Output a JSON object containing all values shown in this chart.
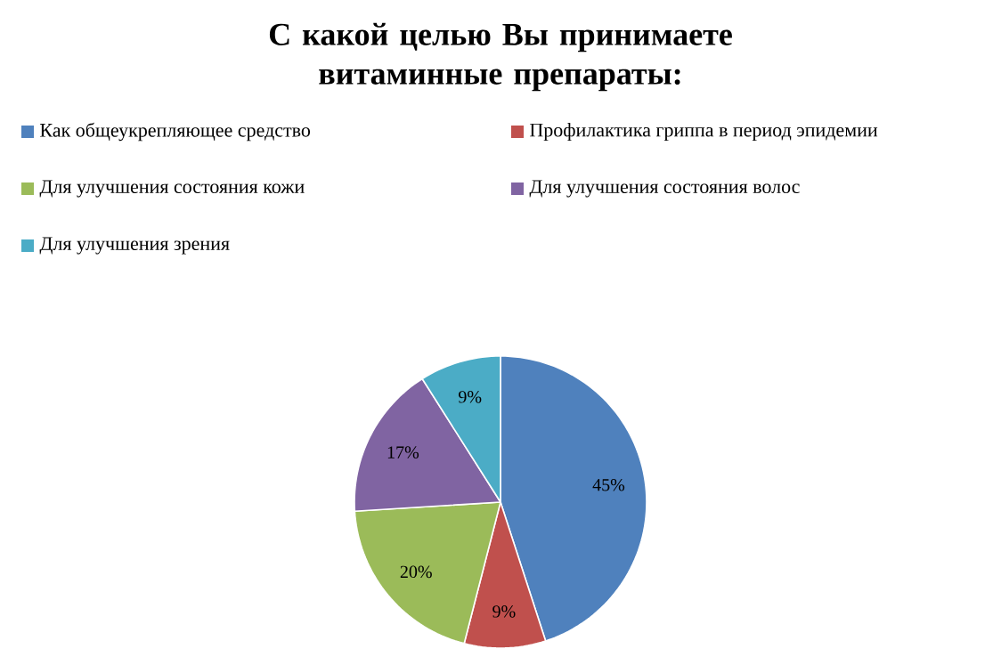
{
  "chart_data": {
    "type": "pie",
    "title": "С какой целью Вы принимаете витаминные препараты:",
    "categories": [
      "Как общеукрепляющее средство",
      "Профилактика гриппа в период эпидемии",
      "Для улучшения состояния кожи",
      "Для улучшения состояния волос",
      "Для улучшения зрения"
    ],
    "values": [
      45,
      9,
      20,
      17,
      9
    ],
    "value_labels": [
      "45%",
      "9%",
      "20%",
      "17%",
      "9%"
    ],
    "colors": [
      "#4f81bd",
      "#c0504d",
      "#9bbb59",
      "#8064a2",
      "#4bacc6"
    ],
    "legend": "top"
  }
}
